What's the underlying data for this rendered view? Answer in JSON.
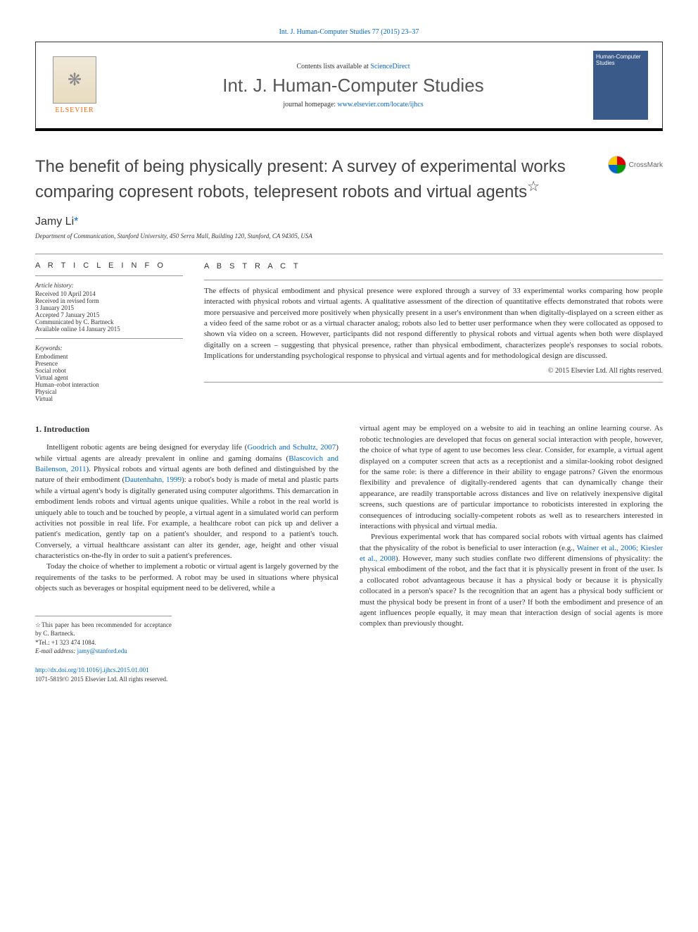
{
  "journal_ref": "Int. J. Human-Computer Studies 77 (2015) 23–37",
  "header": {
    "contents_prefix": "Contents lists available at ",
    "contents_link": "ScienceDirect",
    "journal_title": "Int. J. Human-Computer Studies",
    "homepage_prefix": "journal homepage: ",
    "homepage_link": "www.elsevier.com/locate/ijhcs",
    "publisher": "ELSEVIER",
    "cover_text": "Human-Computer Studies"
  },
  "title": "The benefit of being physically present: A survey of experimental works comparing copresent robots, telepresent robots and virtual agents",
  "title_note": "☆",
  "crossmark": "CrossMark",
  "author": "Jamy Li",
  "author_mark": "*",
  "affiliation": "Department of Communication, Stanford University, 450 Serra Mall, Building 120, Stanford, CA 94305, USA",
  "article_info": {
    "heading": "A R T I C L E  I N F O",
    "history_label": "Article history:",
    "history": [
      "Received 10 April 2014",
      "Received in revised form",
      "3 January 2015",
      "Accepted 7 January 2015",
      "Communicated by C. Bartneck",
      "Available online 14 January 2015"
    ],
    "keywords_label": "Keywords:",
    "keywords": [
      "Embodiment",
      "Presence",
      "Social robot",
      "Virtual agent",
      "Human–robot interaction",
      "Physical",
      "Virtual"
    ]
  },
  "abstract": {
    "heading": "A B S T R A C T",
    "text": "The effects of physical embodiment and physical presence were explored through a survey of 33 experimental works comparing how people interacted with physical robots and virtual agents. A qualitative assessment of the direction of quantitative effects demonstrated that robots were more persuasive and perceived more positively when physically present in a user's environment than when digitally-displayed on a screen either as a video feed of the same robot or as a virtual character analog; robots also led to better user performance when they were collocated as opposed to shown via video on a screen. However, participants did not respond differently to physical robots and virtual agents when both were displayed digitally on a screen – suggesting that physical presence, rather than physical embodiment, characterizes people's responses to social robots. Implications for understanding psychological response to physical and virtual agents and for methodological design are discussed.",
    "copyright": "© 2015 Elsevier Ltd. All rights reserved."
  },
  "section1_heading": "1.  Introduction",
  "col1": {
    "p1a": "Intelligent robotic agents are being designed for everyday life (",
    "p1_link1": "Goodrich and Schultz, 2007",
    "p1b": ") while virtual agents are already prevalent in online and gaming domains (",
    "p1_link2": "Blascovich and Bailenson, 2011",
    "p1c": "). Physical robots and virtual agents are both defined and distinguished by the nature of their embodiment (",
    "p1_link3": "Dautenhahn, 1999",
    "p1d": "): a robot's body is made of metal and plastic parts while a virtual agent's body is digitally generated using computer algorithms. This demarcation in embodiment lends robots and virtual agents unique qualities. While a robot in the real world is uniquely able to touch and be touched by people, a virtual agent in a simulated world can perform activities not possible in real life. For example, a healthcare robot can pick up and deliver a patient's medication, gently tap on a patient's shoulder, and respond to a patient's touch. Conversely, a virtual healthcare assistant can alter its gender, age, height and other visual characteristics on-the-fly in order to suit a patient's preferences.",
    "p2": "Today the choice of whether to implement a robotic or virtual agent is largely governed by the requirements of the tasks to be performed. A robot may be used in situations where physical objects such as beverages or hospital equipment need to be delivered, while a"
  },
  "col2": {
    "p1": "virtual agent may be employed on a website to aid in teaching an online learning course. As robotic technologies are developed that focus on general social interaction with people, however, the choice of what type of agent to use becomes less clear. Consider, for example, a virtual agent displayed on a computer screen that acts as a receptionist and a similar-looking robot designed for the same role: is there a difference in their ability to engage patrons? Given the enormous flexibility and prevalence of digitally-rendered agents that can dynamically change their appearance, are readily transportable across distances and live on relatively inexpensive digital screens, such questions are of particular importance to roboticists interested in exploring the consequences of introducing socially-competent robots as well as to researchers interested in interactions with physical and virtual media.",
    "p2a": "Previous experimental work that has compared social robots with virtual agents has claimed that the physicality of the robot is beneficial to user interaction (e.g., ",
    "p2_link": "Wainer et al., 2006; Kiesler et al., 2008",
    "p2b": "). However, many such studies conflate two different dimensions of physicality: the physical embodiment of the robot, and the fact that it is physically present in front of the user. Is a collocated robot advantageous because it has a physical body or because it is physically collocated in a person's space? Is the recognition that an agent has a physical body sufficient or must the physical body be present in front of a user? If both the embodiment and presence of an agent influences people equally, it may mean that interaction design of social agents is more complex than previously thought."
  },
  "footnotes": {
    "f1": "☆This paper has been recommended for acceptance by C. Bartneck.",
    "f2": "*Tel.: +1 323 474 1084.",
    "f3_label": "E-mail address: ",
    "f3_email": "jamy@stanford.edu"
  },
  "doi": {
    "link": "http://dx.doi.org/10.1016/j.ijhcs.2015.01.001",
    "issn": "1071-5819/© 2015 Elsevier Ltd. All rights reserved."
  }
}
